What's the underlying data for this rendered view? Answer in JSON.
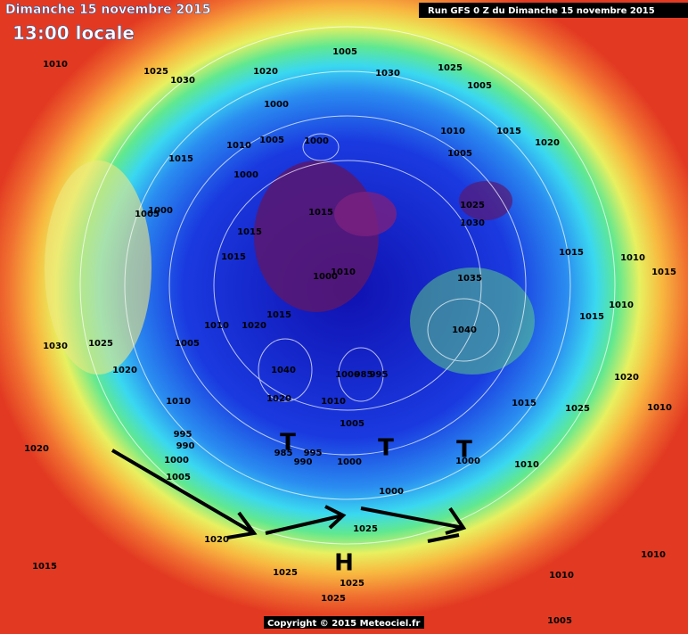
{
  "header": {
    "date": "Dimanche 15 novembre 2015",
    "time": "13:00 locale",
    "run": "Run GFS 0 Z du Dimanche 15 novembre 2015"
  },
  "pressure_labels": [
    1010,
    1025,
    1030,
    1020,
    1005,
    1030,
    1025,
    1005,
    1000,
    1005,
    1000,
    1010,
    1015,
    1000,
    1010,
    1015,
    1020,
    1005,
    1005,
    1000,
    1015,
    1015,
    1025,
    1030,
    1015,
    1000,
    1010,
    1035,
    1015,
    1010,
    1015,
    1015,
    1010,
    1020,
    1015,
    1010,
    1030,
    1025,
    1005,
    1040,
    1020,
    1040,
    1000,
    985,
    995,
    1020,
    1010,
    1020,
    1010,
    1015,
    1025,
    1010,
    1005,
    995,
    990,
    1020,
    985,
    995,
    990,
    1000,
    1000,
    1000,
    1010,
    1005,
    1000,
    1020,
    1025,
    1015,
    1025,
    1025,
    1010,
    1010,
    1025,
    1005
  ],
  "systems": [
    "T",
    "T",
    "T",
    "H"
  ],
  "copyright": "Copyright © 2015 Meteociel.fr"
}
